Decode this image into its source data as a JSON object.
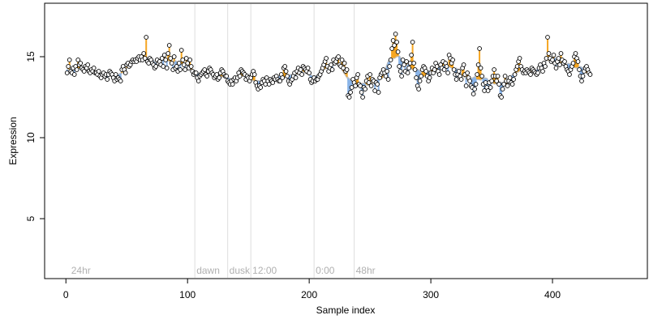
{
  "chart_data": {
    "type": "scatter",
    "title": "",
    "xlabel": "Sample index",
    "ylabel": "Expression",
    "xlim": [
      -17.5,
      478
    ],
    "ylim": [
      1.3,
      18.3
    ],
    "x_ticks": [
      0,
      100,
      200,
      300,
      400
    ],
    "y_ticks": [
      5,
      10,
      15
    ],
    "grid": false,
    "legend": "none",
    "colors": {
      "points_fill": "#ffffff",
      "points_stroke": "#000000",
      "up_segment": "#f5a623",
      "down_segment": "#8ab4e8",
      "baseline": "#b0b0b0",
      "marker_line": "#dddddd",
      "marker_text": "#b0b0b0"
    },
    "markers": [
      {
        "label": "24hr",
        "x": 3
      },
      {
        "label": "dawn",
        "x": 106
      },
      {
        "label": "dusk",
        "x": 133
      },
      {
        "label": "12:00",
        "x": 152
      },
      {
        "label": "0:00",
        "x": 204
      },
      {
        "label": "48hr",
        "x": 237
      }
    ],
    "series": [
      {
        "x_start": 1,
        "x_step": 1,
        "values": [
          14.0,
          14.4,
          14.8,
          14.1,
          14.0,
          14.3,
          13.9,
          14.4,
          14.2,
          14.8,
          14.5,
          14.6,
          14.3,
          14.2,
          14.1,
          14.4,
          14.3,
          14.5,
          14.1,
          14.0,
          14.2,
          14.1,
          14.3,
          14.0,
          14.0,
          13.9,
          14.1,
          13.8,
          13.7,
          13.9,
          14.0,
          13.8,
          13.9,
          13.6,
          13.9,
          14.1,
          14.0,
          13.9,
          13.7,
          13.5,
          13.9,
          13.6,
          13.7,
          13.6,
          13.5,
          14.2,
          14.4,
          14.2,
          14.0,
          14.5,
          14.6,
          14.4,
          14.5,
          14.7,
          14.8,
          14.7,
          14.8,
          14.7,
          14.9,
          15.0,
          14.8,
          15.0,
          14.8,
          15.2,
          14.9,
          16.2,
          14.7,
          14.6,
          14.9,
          14.8,
          14.6,
          14.5,
          14.3,
          14.4,
          14.8,
          14.6,
          14.7,
          14.5,
          14.9,
          14.4,
          15.1,
          14.8,
          14.3,
          15.2,
          15.7,
          14.9,
          14.6,
          14.2,
          15.0,
          14.3,
          14.4,
          14.1,
          14.6,
          14.2,
          15.4,
          14.8,
          14.5,
          14.2,
          14.9,
          14.6,
          14.3,
          14.8,
          14.4,
          14.1,
          13.9,
          14.0,
          14.0,
          13.7,
          13.5,
          13.8,
          13.9,
          14.0,
          14.1,
          14.2,
          13.9,
          13.8,
          14.1,
          14.3,
          14.2,
          14.0,
          13.9,
          13.7,
          13.8,
          13.9,
          13.6,
          13.7,
          14.0,
          14.2,
          14.1,
          13.9,
          13.8,
          13.8,
          13.5,
          13.4,
          13.3,
          13.5,
          13.3,
          13.6,
          13.7,
          13.5,
          13.7,
          14.0,
          13.8,
          14.2,
          14.1,
          14.0,
          13.9,
          13.6,
          13.8,
          13.7,
          13.5,
          13.7,
          13.9,
          14.1,
          13.9,
          13.4,
          13.2,
          13.0,
          13.2,
          13.1,
          13.4,
          13.6,
          13.5,
          13.3,
          13.7,
          13.5,
          13.3,
          13.6,
          13.5,
          13.4,
          13.7,
          13.6,
          13.8,
          13.6,
          13.5,
          13.5,
          13.9,
          13.7,
          14.3,
          14.4,
          14.1,
          13.8,
          13.5,
          13.3,
          13.5,
          13.6,
          13.8,
          14.0,
          13.7,
          14.1,
          14.3,
          14.0,
          14.2,
          13.9,
          14.4,
          14.3,
          14.2,
          14.1,
          14.3,
          14.0,
          13.6,
          13.4,
          13.5,
          13.7,
          13.5,
          13.6,
          13.6,
          13.8,
          13.9,
          14.1,
          14.3,
          14.5,
          14.7,
          14.9,
          14.4,
          14.1,
          14.3,
          14.5,
          14.2,
          14.8,
          14.6,
          14.7,
          14.9,
          15.0,
          14.5,
          14.4,
          14.8,
          14.3,
          14.6,
          14.1,
          14.2,
          12.6,
          12.5,
          12.8,
          13.1,
          13.6,
          13.4,
          13.2,
          13.7,
          13.9,
          13.3,
          13.2,
          12.8,
          12.5,
          13.1,
          13.0,
          13.5,
          13.8,
          13.4,
          13.9,
          13.2,
          13.6,
          13.5,
          12.9,
          13.4,
          13.3,
          12.8,
          13.7,
          13.9,
          14.0,
          14.2,
          14.0,
          13.8,
          14.1,
          13.6,
          14.4,
          14.8,
          15.5,
          16.0,
          15.7,
          16.4,
          15.9,
          15.3,
          14.4,
          14.1,
          13.8,
          14.8,
          14.5,
          14.1,
          14.7,
          14.0,
          14.3,
          14.6,
          15.1,
          15.9,
          14.6,
          14.2,
          13.7,
          13.2,
          13.0,
          13.5,
          13.8,
          14.2,
          14.4,
          14.3,
          14.1,
          13.8,
          13.5,
          13.7,
          14.0,
          14.3,
          14.0,
          14.2,
          14.6,
          14.4,
          14.1,
          13.9,
          14.5,
          14.3,
          14.7,
          14.2,
          14.6,
          14.4,
          14.0,
          15.1,
          14.9,
          14.6,
          14.8,
          14.2,
          13.9,
          13.6,
          13.9,
          14.1,
          13.8,
          13.6,
          14.3,
          14.5,
          13.9,
          13.2,
          14.0,
          13.7,
          13.5,
          13.2,
          13.1,
          12.7,
          13.0,
          13.3,
          13.9,
          14.5,
          15.5,
          14.3,
          13.8,
          13.3,
          12.9,
          13.4,
          13.1,
          12.9,
          13.4,
          13.1,
          13.5,
          13.8,
          14.2,
          13.8,
          13.5,
          13.8,
          13.3,
          12.6,
          12.5,
          13.0,
          13.3,
          13.8,
          13.5,
          13.2,
          13.5,
          13.7,
          13.4,
          13.3,
          13.6,
          13.9,
          14.2,
          14.4,
          14.7,
          14.9,
          14.4,
          14.2,
          14.0,
          14.1,
          14.0,
          14.2,
          14.1,
          14.0,
          13.9,
          14.3,
          14.2,
          14.1,
          14.0,
          13.9,
          14.0,
          14.3,
          14.5,
          14.3,
          14.1,
          14.6,
          14.4,
          14.9,
          16.2,
          15.2,
          14.9,
          14.7,
          14.8,
          15.1,
          14.6,
          14.3,
          14.7,
          14.9,
          14.5,
          15.2,
          14.8,
          14.6,
          14.7,
          14.4,
          14.2,
          14.1,
          13.9,
          14.2,
          14.4,
          14.6,
          15.0,
          15.2,
          14.9,
          14.7,
          14.2,
          13.8,
          13.5,
          13.8,
          14.1,
          14.3,
          14.4,
          14.2,
          14.0,
          13.9
        ]
      }
    ]
  }
}
